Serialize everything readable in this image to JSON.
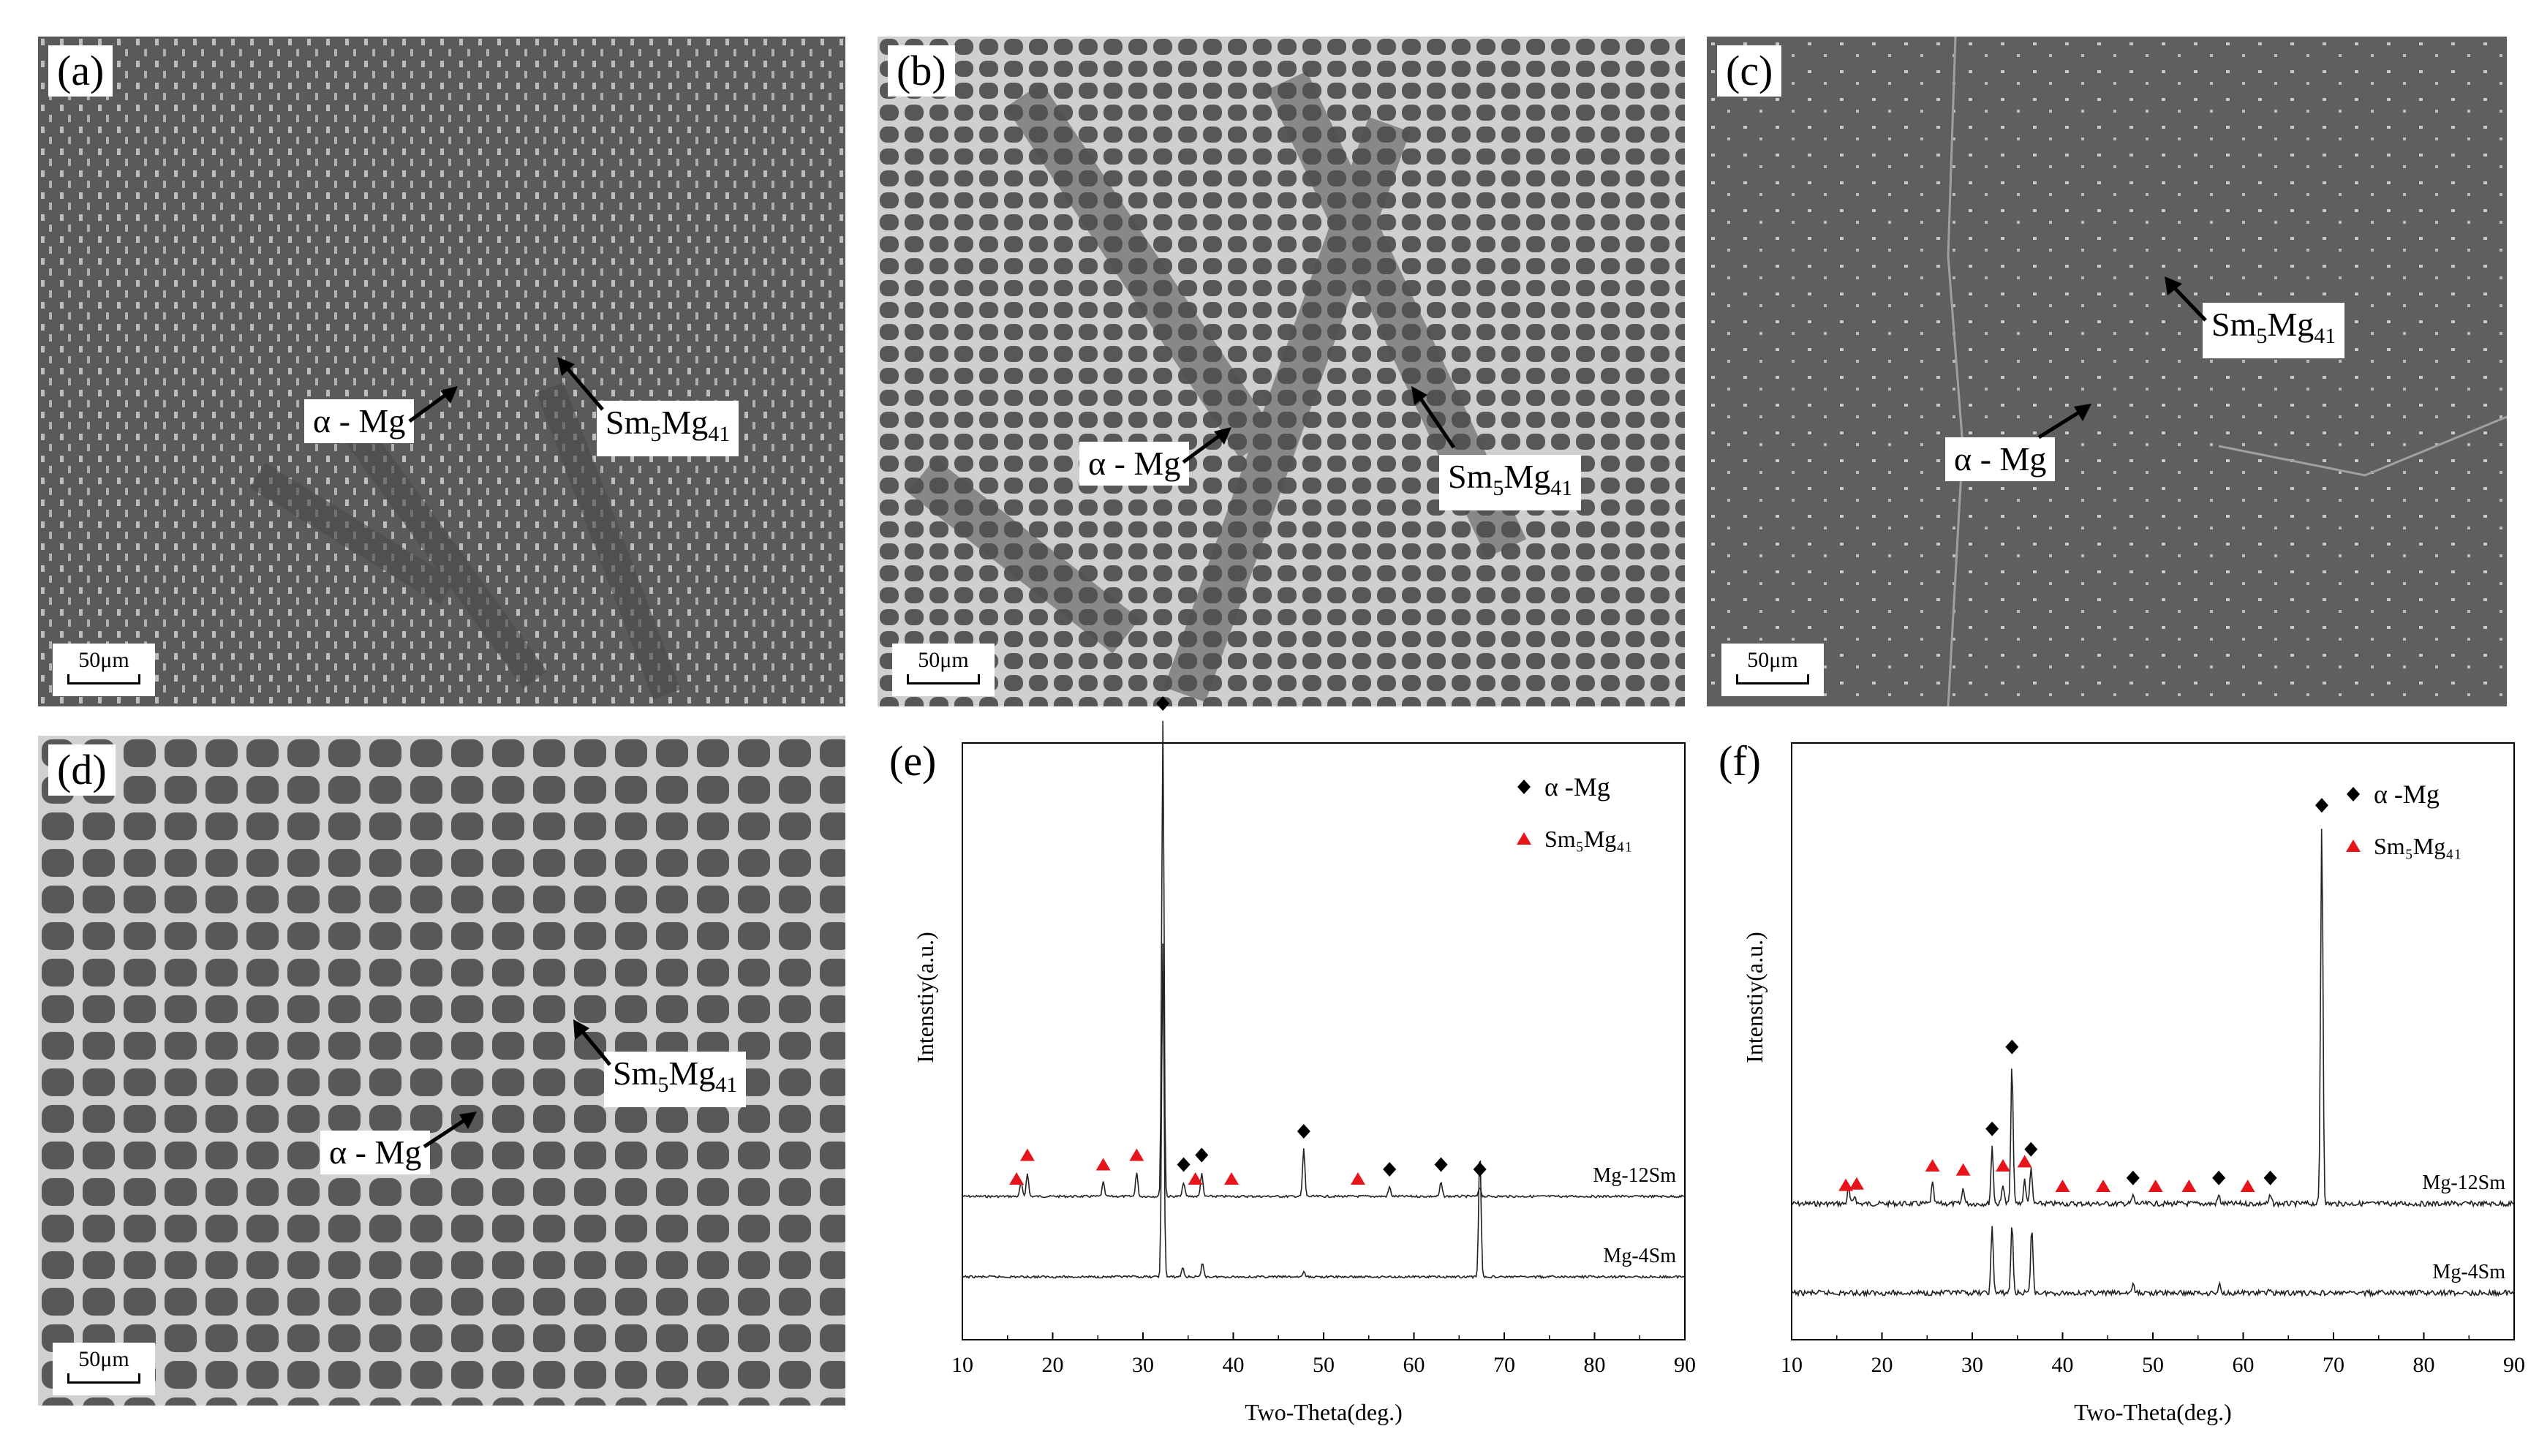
{
  "panels": {
    "a": {
      "label": "(a)",
      "phase1": "α - Mg",
      "phase2": "Sm5Mg41",
      "scale": "50μm"
    },
    "b": {
      "label": "(b)",
      "phase1": "α - Mg",
      "phase2": "Sm5Mg41",
      "scale": "50μm"
    },
    "c": {
      "label": "(c)",
      "phase1": "α - Mg",
      "phase2": "Sm5Mg41",
      "scale": "50μm"
    },
    "d": {
      "label": "(d)",
      "phase1": "α - Mg",
      "phase2": "Sm5Mg41",
      "scale": "50μm"
    },
    "e": {
      "label": "(e)"
    },
    "f": {
      "label": "(f)"
    }
  },
  "colors": {
    "micro_bg": "#555555",
    "micro_light": "#cfcfcf",
    "alpha_marker": "#000000",
    "sm_marker": "#e8141b"
  },
  "chart_data": [
    {
      "type": "line",
      "panel": "e",
      "xlabel": "Two-Theta(deg.)",
      "ylabel": "Intenstiy(a.u.)",
      "xlim": [
        10,
        90
      ],
      "xticks": [
        10,
        20,
        30,
        40,
        50,
        60,
        70,
        80,
        90
      ],
      "legend": [
        "α -Mg",
        "Sm5Mg41"
      ],
      "legend_position": "top-right",
      "series": [
        {
          "name": "Mg-12Sm",
          "peaks": [
            [
              16.5,
              0.03
            ],
            [
              17.2,
              0.05
            ],
            [
              25.6,
              0.03
            ],
            [
              29.3,
              0.05
            ],
            [
              32.2,
              1.0
            ],
            [
              34.5,
              0.03
            ],
            [
              36.5,
              0.05
            ],
            [
              47.8,
              0.1
            ],
            [
              57.3,
              0.02
            ],
            [
              63.0,
              0.03
            ],
            [
              67.3,
              0.02
            ]
          ]
        },
        {
          "name": "Mg-4Sm",
          "peaks": [
            [
              32.2,
              0.7
            ],
            [
              34.4,
              0.02
            ],
            [
              36.6,
              0.03
            ],
            [
              47.8,
              0.01
            ],
            [
              67.3,
              0.27
            ]
          ]
        }
      ],
      "markers": {
        "alpha_Mg": [
          32.2,
          34.5,
          36.5,
          47.8,
          57.3,
          63.0,
          67.3
        ],
        "Sm5Mg41": [
          16.0,
          17.2,
          25.6,
          29.3,
          35.8,
          39.8,
          53.8
        ]
      }
    },
    {
      "type": "line",
      "panel": "f",
      "xlabel": "Two-Theta(deg.)",
      "ylabel": "Intenstiy(a.u.)",
      "xlim": [
        10,
        90
      ],
      "xticks": [
        10,
        20,
        30,
        40,
        50,
        60,
        70,
        80,
        90
      ],
      "legend": [
        "α -Mg",
        "Sm5Mg41"
      ],
      "legend_position": "top-right",
      "series": [
        {
          "name": "Mg-12Sm",
          "peaks": [
            [
              16.3,
              0.04
            ],
            [
              17.0,
              0.02
            ],
            [
              25.6,
              0.05
            ],
            [
              29.0,
              0.04
            ],
            [
              32.2,
              0.14
            ],
            [
              33.4,
              0.05
            ],
            [
              34.4,
              0.34
            ],
            [
              35.8,
              0.06
            ],
            [
              36.5,
              0.09
            ],
            [
              47.8,
              0.02
            ],
            [
              57.3,
              0.02
            ],
            [
              63.0,
              0.02
            ],
            [
              68.7,
              0.93
            ]
          ]
        },
        {
          "name": "Mg-4Sm",
          "peaks": [
            [
              32.2,
              0.16
            ],
            [
              34.4,
              0.17
            ],
            [
              36.6,
              0.16
            ],
            [
              47.8,
              0.02
            ],
            [
              57.4,
              0.02
            ],
            [
              63.0,
              0.01
            ]
          ]
        }
      ],
      "markers": {
        "alpha_Mg": [
          32.2,
          34.4,
          36.5,
          47.8,
          57.3,
          63.0,
          68.7
        ],
        "Sm5Mg41": [
          16.0,
          17.2,
          25.6,
          29.0,
          33.4,
          35.8,
          40.0,
          44.5,
          50.3,
          54.0,
          60.5
        ]
      }
    }
  ]
}
